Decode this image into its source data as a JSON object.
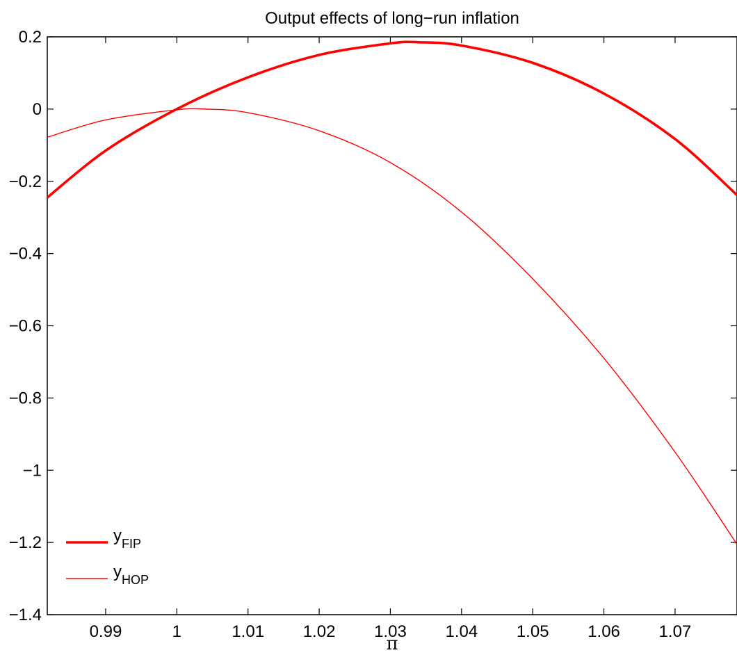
{
  "chart_data": {
    "type": "line",
    "title": "Output effects of long−run inflation",
    "xlabel": "π",
    "ylabel": "",
    "xlim": [
      0.9818,
      1.0787
    ],
    "ylim": [
      -1.4,
      0.2
    ],
    "xticks": [
      0.99,
      1.0,
      1.01,
      1.02,
      1.03,
      1.04,
      1.05,
      1.06,
      1.07
    ],
    "xtick_labels": [
      "0.99",
      "1",
      "1.01",
      "1.02",
      "1.03",
      "1.04",
      "1.05",
      "1.06",
      "1.07"
    ],
    "yticks": [
      0.2,
      0,
      -0.2,
      -0.4,
      -0.6,
      -0.8,
      -1.0,
      -1.2,
      -1.4
    ],
    "ytick_labels": [
      "0.2",
      "0",
      "−0.2",
      "−0.4",
      "−0.6",
      "−0.8",
      "−1",
      "−1.2",
      "−1.4"
    ],
    "grid": false,
    "legend_position": "bottom-left",
    "color": "#ff0000",
    "series": [
      {
        "name": "y",
        "subscript": "FIP",
        "line_width": "thick",
        "x": [
          0.9818,
          0.99,
          1.0,
          1.01,
          1.02,
          1.03,
          1.034,
          1.04,
          1.05,
          1.06,
          1.07,
          1.0787
        ],
        "y": [
          -0.245,
          -0.115,
          0.0,
          0.088,
          0.15,
          0.182,
          0.185,
          0.176,
          0.128,
          0.043,
          -0.083,
          -0.238
        ]
      },
      {
        "name": "y",
        "subscript": "HOP",
        "line_width": "thin",
        "x": [
          0.9818,
          0.99,
          1.0,
          1.004,
          1.01,
          1.02,
          1.03,
          1.04,
          1.05,
          1.06,
          1.07,
          1.0787
        ],
        "y": [
          -0.078,
          -0.03,
          -0.002,
          0.0,
          -0.01,
          -0.06,
          -0.148,
          -0.285,
          -0.47,
          -0.69,
          -0.95,
          -1.205
        ]
      }
    ]
  }
}
